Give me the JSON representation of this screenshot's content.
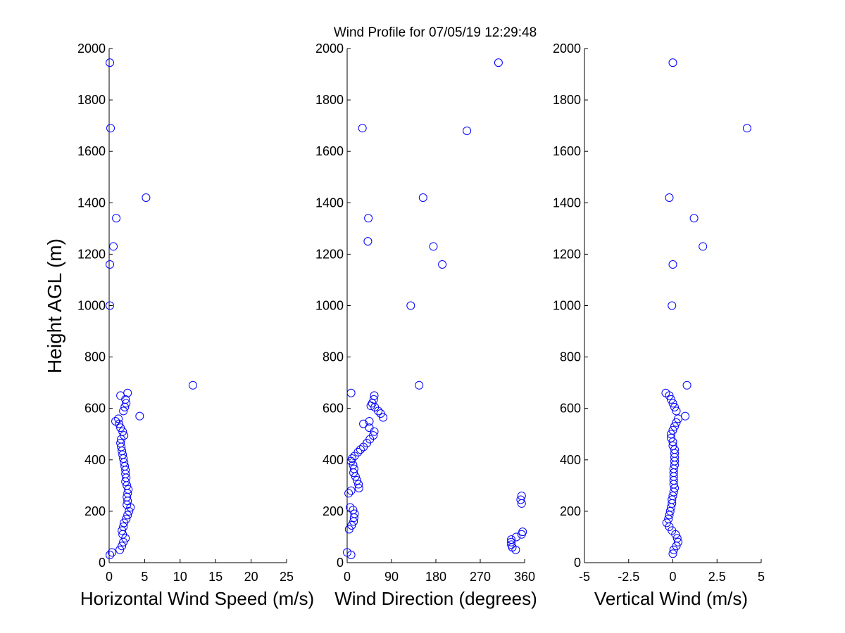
{
  "title": "Wind Profile for  07/05/19 12:29:48",
  "marker_color": "#0000ff",
  "ylabel": "Height AGL (m)",
  "chart_data": [
    {
      "type": "scatter",
      "xlabel": "Horizontal Wind Speed (m/s)",
      "ylabel": "Height AGL (m)",
      "xlim": [
        0,
        25
      ],
      "ylim": [
        0,
        2000
      ],
      "xticks": [
        "0",
        "5",
        "10",
        "15",
        "20",
        "25"
      ],
      "xtick_values": [
        0,
        5,
        10,
        15,
        20,
        25
      ],
      "yticks": [
        "0",
        "200",
        "400",
        "600",
        "800",
        "1000",
        "1200",
        "1400",
        "1600",
        "1800",
        "2000"
      ],
      "ytick_values": [
        0,
        200,
        400,
        600,
        800,
        1000,
        1200,
        1400,
        1600,
        1800,
        2000
      ],
      "points": [
        [
          0.1,
          1945
        ],
        [
          0.2,
          1690
        ],
        [
          5.2,
          1420
        ],
        [
          1.0,
          1340
        ],
        [
          0.6,
          1230
        ],
        [
          0.1,
          1160
        ],
        [
          0.1,
          1000
        ],
        [
          11.8,
          690
        ],
        [
          2.6,
          660
        ],
        [
          1.6,
          650
        ],
        [
          2.3,
          635
        ],
        [
          2.4,
          620
        ],
        [
          2.2,
          605
        ],
        [
          2.0,
          590
        ],
        [
          4.3,
          570
        ],
        [
          1.3,
          560
        ],
        [
          0.9,
          550
        ],
        [
          1.4,
          540
        ],
        [
          1.6,
          525
        ],
        [
          1.9,
          510
        ],
        [
          2.1,
          495
        ],
        [
          1.7,
          480
        ],
        [
          1.6,
          465
        ],
        [
          1.7,
          450
        ],
        [
          1.8,
          435
        ],
        [
          1.9,
          420
        ],
        [
          2.0,
          405
        ],
        [
          2.1,
          390
        ],
        [
          2.2,
          375
        ],
        [
          2.3,
          360
        ],
        [
          2.3,
          345
        ],
        [
          2.4,
          330
        ],
        [
          2.3,
          315
        ],
        [
          2.5,
          300
        ],
        [
          2.7,
          285
        ],
        [
          2.6,
          270
        ],
        [
          2.5,
          255
        ],
        [
          2.6,
          240
        ],
        [
          2.5,
          225
        ],
        [
          3.0,
          215
        ],
        [
          2.8,
          200
        ],
        [
          2.6,
          185
        ],
        [
          2.4,
          170
        ],
        [
          2.1,
          155
        ],
        [
          2.0,
          140
        ],
        [
          1.8,
          125
        ],
        [
          1.9,
          110
        ],
        [
          2.3,
          95
        ],
        [
          2.0,
          80
        ],
        [
          1.8,
          65
        ],
        [
          1.5,
          50
        ],
        [
          0.4,
          40
        ],
        [
          0.1,
          30
        ]
      ]
    },
    {
      "type": "scatter",
      "xlabel": "Wind Direction (degrees)",
      "ylabel": "",
      "xlim": [
        0,
        360
      ],
      "ylim": [
        0,
        2000
      ],
      "xticks": [
        "0",
        "90",
        "180",
        "270",
        "360"
      ],
      "xtick_values": [
        0,
        90,
        180,
        270,
        360
      ],
      "yticks": [
        "0",
        "200",
        "400",
        "600",
        "800",
        "1000",
        "1200",
        "1400",
        "1600",
        "1800",
        "2000"
      ],
      "ytick_values": [
        0,
        200,
        400,
        600,
        800,
        1000,
        1200,
        1400,
        1600,
        1800,
        2000
      ],
      "points": [
        [
          307,
          1945
        ],
        [
          31,
          1690
        ],
        [
          243,
          1680
        ],
        [
          154,
          1420
        ],
        [
          43,
          1340
        ],
        [
          175,
          1230
        ],
        [
          42,
          1250
        ],
        [
          193,
          1160
        ],
        [
          129,
          1000
        ],
        [
          146,
          690
        ],
        [
          8,
          660
        ],
        [
          55,
          650
        ],
        [
          54,
          635
        ],
        [
          51,
          620
        ],
        [
          56,
          605
        ],
        [
          48,
          610
        ],
        [
          63,
          590
        ],
        [
          68,
          580
        ],
        [
          73,
          565
        ],
        [
          45,
          550
        ],
        [
          33,
          540
        ],
        [
          45,
          525
        ],
        [
          55,
          510
        ],
        [
          53,
          495
        ],
        [
          46,
          480
        ],
        [
          40,
          465
        ],
        [
          33,
          450
        ],
        [
          27,
          440
        ],
        [
          22,
          430
        ],
        [
          15,
          415
        ],
        [
          10,
          405
        ],
        [
          8,
          395
        ],
        [
          12,
          380
        ],
        [
          14,
          365
        ],
        [
          13,
          350
        ],
        [
          17,
          335
        ],
        [
          20,
          320
        ],
        [
          23,
          305
        ],
        [
          24,
          290
        ],
        [
          8,
          280
        ],
        [
          3,
          270
        ],
        [
          354,
          260
        ],
        [
          352,
          245
        ],
        [
          354,
          230
        ],
        [
          6,
          215
        ],
        [
          12,
          205
        ],
        [
          15,
          190
        ],
        [
          14,
          175
        ],
        [
          13,
          160
        ],
        [
          9,
          145
        ],
        [
          4,
          130
        ],
        [
          356,
          120
        ],
        [
          354,
          110
        ],
        [
          343,
          100
        ],
        [
          333,
          90
        ],
        [
          333,
          80
        ],
        [
          333,
          70
        ],
        [
          335,
          60
        ],
        [
          342,
          50
        ],
        [
          0,
          40
        ],
        [
          8,
          30
        ]
      ]
    },
    {
      "type": "scatter",
      "xlabel": "Vertical Wind (m/s)",
      "ylabel": "",
      "xlim": [
        -5,
        5
      ],
      "ylim": [
        0,
        2000
      ],
      "xticks": [
        "-5",
        "-2.5",
        "0",
        "2.5",
        "5"
      ],
      "xtick_values": [
        -5,
        -2.5,
        0,
        2.5,
        5
      ],
      "yticks": [
        "0",
        "200",
        "400",
        "600",
        "800",
        "1000",
        "1200",
        "1400",
        "1600",
        "1800",
        "2000"
      ],
      "ytick_values": [
        0,
        200,
        400,
        600,
        800,
        1000,
        1200,
        1400,
        1600,
        1800,
        2000
      ],
      "points": [
        [
          0.0,
          1945
        ],
        [
          4.2,
          1690
        ],
        [
          -0.2,
          1420
        ],
        [
          1.2,
          1340
        ],
        [
          1.7,
          1230
        ],
        [
          0.0,
          1160
        ],
        [
          -0.05,
          1000
        ],
        [
          0.8,
          690
        ],
        [
          -0.4,
          660
        ],
        [
          -0.2,
          650
        ],
        [
          -0.1,
          635
        ],
        [
          0.0,
          620
        ],
        [
          0.1,
          605
        ],
        [
          0.2,
          590
        ],
        [
          0.7,
          570
        ],
        [
          0.3,
          560
        ],
        [
          0.2,
          545
        ],
        [
          0.1,
          530
        ],
        [
          0.0,
          515
        ],
        [
          -0.1,
          500
        ],
        [
          -0.1,
          485
        ],
        [
          0.0,
          470
        ],
        [
          0.0,
          455
        ],
        [
          0.1,
          440
        ],
        [
          0.1,
          425
        ],
        [
          0.1,
          410
        ],
        [
          0.1,
          395
        ],
        [
          0.1,
          380
        ],
        [
          0.05,
          365
        ],
        [
          0.05,
          350
        ],
        [
          0.05,
          335
        ],
        [
          0.05,
          320
        ],
        [
          0.05,
          305
        ],
        [
          0.1,
          290
        ],
        [
          0.05,
          275
        ],
        [
          0.0,
          260
        ],
        [
          -0.05,
          245
        ],
        [
          -0.05,
          230
        ],
        [
          -0.1,
          215
        ],
        [
          -0.15,
          200
        ],
        [
          -0.2,
          185
        ],
        [
          -0.25,
          170
        ],
        [
          -0.35,
          155
        ],
        [
          -0.2,
          140
        ],
        [
          -0.05,
          125
        ],
        [
          0.15,
          110
        ],
        [
          0.25,
          95
        ],
        [
          0.3,
          80
        ],
        [
          0.2,
          65
        ],
        [
          0.05,
          50
        ],
        [
          0.0,
          35
        ]
      ]
    }
  ]
}
